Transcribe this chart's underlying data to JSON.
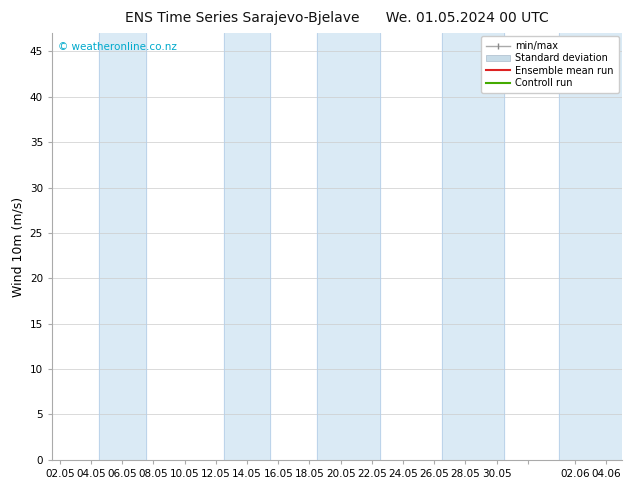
{
  "title": "ENS Time Series Sarajevo-Bjelave      We. 01.05.2024 00 UTC",
  "ylabel": "Wind 10m (m/s)",
  "ylim": [
    0,
    47
  ],
  "yticks": [
    0,
    5,
    10,
    15,
    20,
    25,
    30,
    35,
    40,
    45
  ],
  "x_tick_labels": [
    "02.05",
    "04.05",
    "06.05",
    "08.05",
    "10.05",
    "12.05",
    "14.05",
    "16.05",
    "18.05",
    "20.05",
    "22.05",
    "24.05",
    "26.05",
    "28.05",
    "30.05",
    "",
    "02.06",
    "04.06"
  ],
  "x_tick_positions": [
    0,
    2,
    4,
    6,
    8,
    10,
    12,
    14,
    16,
    18,
    20,
    22,
    24,
    26,
    28,
    30,
    33,
    35
  ],
  "xlim": [
    -0.5,
    36
  ],
  "shaded_regions": [
    [
      2.5,
      5.5
    ],
    [
      10.5,
      13.5
    ],
    [
      16.5,
      20.5
    ],
    [
      24.5,
      28.5
    ],
    [
      32.0,
      36.0
    ]
  ],
  "shaded_color": "#daeaf5",
  "shaded_edge_color": "#b8d0e8",
  "background_color": "#ffffff",
  "watermark_text": "© weatheronline.co.nz",
  "watermark_color": "#00aacc",
  "title_fontsize": 10,
  "axis_fontsize": 9,
  "tick_fontsize": 7.5
}
